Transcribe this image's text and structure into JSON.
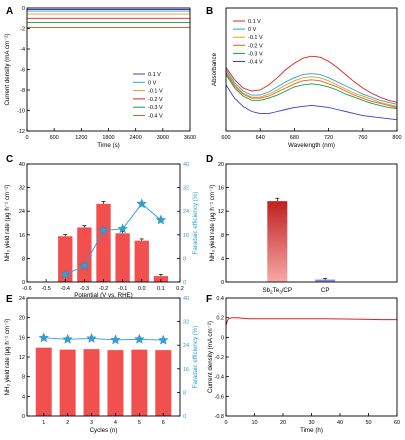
{
  "chart_data": [
    {
      "panel": "A",
      "type": "line",
      "xlabel": "Time (s)",
      "ylabel": "Current density (mA cm⁻²)",
      "xlim": [
        0,
        3600
      ],
      "ylim": [
        -12,
        0
      ],
      "xticks": [
        0,
        600,
        1200,
        1800,
        2400,
        3000,
        3600
      ],
      "yticks": [
        -12,
        -10,
        -8,
        -6,
        -4,
        -2,
        0
      ],
      "legend_position": "center-right",
      "series": [
        {
          "name": "0.1 V",
          "color": "#3a3fc4",
          "values": [
            -0.15,
            -0.15
          ]
        },
        {
          "name": "0 V",
          "color": "#2f9fd8",
          "values": [
            -0.3,
            -0.3
          ]
        },
        {
          "name": "-0.1 V",
          "color": "#e0a020",
          "values": [
            -0.6,
            -0.6
          ]
        },
        {
          "name": "-0.2 V",
          "color": "#e02020",
          "values": [
            -1.0,
            -1.0
          ]
        },
        {
          "name": "-0.3 V",
          "color": "#1a9a3a",
          "values": [
            -1.4,
            -1.4
          ]
        },
        {
          "name": "-0.4 V",
          "color": "#e06020",
          "values": [
            -1.9,
            -1.9
          ]
        }
      ],
      "x": [
        0,
        3600
      ]
    },
    {
      "panel": "B",
      "type": "line",
      "xlabel": "Wavelength (nm)",
      "ylabel": "Absorbance",
      "xlim": [
        600,
        800
      ],
      "ylim": [
        0,
        1.2
      ],
      "xticks": [
        600,
        640,
        680,
        720,
        760,
        800
      ],
      "legend_position": "top-left",
      "x": [
        600,
        610,
        620,
        630,
        640,
        650,
        660,
        670,
        680,
        690,
        700,
        710,
        720,
        730,
        740,
        750,
        760,
        770,
        780,
        790,
        800
      ],
      "series": [
        {
          "name": "0.1 V",
          "color": "#e02020",
          "values": [
            0.62,
            0.5,
            0.42,
            0.39,
            0.4,
            0.45,
            0.52,
            0.6,
            0.66,
            0.71,
            0.73,
            0.72,
            0.68,
            0.62,
            0.55,
            0.48,
            0.42,
            0.37,
            0.33,
            0.3,
            0.28
          ]
        },
        {
          "name": "0 V",
          "color": "#2f9fd8",
          "values": [
            0.6,
            0.47,
            0.39,
            0.35,
            0.35,
            0.38,
            0.43,
            0.48,
            0.52,
            0.55,
            0.56,
            0.55,
            0.52,
            0.48,
            0.44,
            0.4,
            0.36,
            0.33,
            0.3,
            0.28,
            0.26
          ]
        },
        {
          "name": "-0.1 V",
          "color": "#e0a020",
          "values": [
            0.58,
            0.45,
            0.37,
            0.33,
            0.33,
            0.36,
            0.4,
            0.45,
            0.49,
            0.52,
            0.53,
            0.52,
            0.49,
            0.45,
            0.41,
            0.37,
            0.34,
            0.31,
            0.28,
            0.26,
            0.24
          ]
        },
        {
          "name": "-0.2 V",
          "color": "#e06020",
          "values": [
            0.57,
            0.44,
            0.36,
            0.32,
            0.32,
            0.34,
            0.38,
            0.42,
            0.46,
            0.49,
            0.5,
            0.49,
            0.46,
            0.43,
            0.39,
            0.35,
            0.32,
            0.29,
            0.27,
            0.25,
            0.23
          ]
        },
        {
          "name": "-0.3 V",
          "color": "#1a9a3a",
          "values": [
            0.55,
            0.42,
            0.34,
            0.3,
            0.3,
            0.32,
            0.35,
            0.39,
            0.43,
            0.45,
            0.46,
            0.45,
            0.43,
            0.4,
            0.36,
            0.33,
            0.3,
            0.27,
            0.25,
            0.23,
            0.22
          ]
        },
        {
          "name": "-0.4 V",
          "color": "#3a3fc4",
          "values": [
            0.45,
            0.32,
            0.24,
            0.19,
            0.17,
            0.17,
            0.19,
            0.21,
            0.23,
            0.24,
            0.25,
            0.24,
            0.23,
            0.21,
            0.19,
            0.17,
            0.15,
            0.14,
            0.13,
            0.12,
            0.11
          ]
        }
      ]
    },
    {
      "panel": "C",
      "type": "bar",
      "xlabel": "Potential (V vs. RHE)",
      "ylabel": "NH₃ yield rate (μg h⁻¹ cm⁻²)",
      "y2label": "Faradaic efficiency (%)",
      "xlim": [
        -0.6,
        0.2
      ],
      "ylim": [
        0,
        40
      ],
      "y2lim": [
        0,
        40
      ],
      "xticks": [
        "-0.6",
        "-0.5",
        "-0.4",
        "-0.3",
        "-0.2",
        "-0.1",
        "0.0",
        "0.1",
        "0.2"
      ],
      "yticks": [
        0,
        8,
        16,
        24,
        32,
        40
      ],
      "y2ticks": [
        0,
        8,
        16,
        24,
        32,
        40
      ],
      "x": [
        -0.4,
        -0.3,
        -0.2,
        -0.1,
        0.0,
        0.1
      ],
      "bar_values": [
        15.5,
        18.5,
        26.5,
        16.5,
        14.0,
        2.0
      ],
      "bar_errors": [
        0.6,
        0.6,
        0.8,
        0.6,
        0.6,
        0.6
      ],
      "fe_values": [
        2.5,
        5.5,
        17.5,
        18.0,
        26.5,
        21.0
      ],
      "bar_color": "#f2504f",
      "line_color": "#2f9fd8"
    },
    {
      "panel": "D",
      "type": "bar",
      "ylabel": "NH₃ yield rate (μg h⁻¹ cm⁻²)",
      "categories": [
        "Sb₂Te₃/CP",
        "CP"
      ],
      "category_main": [
        "Sb",
        "Te",
        "/CP",
        "CP"
      ],
      "values": [
        13.7,
        0.4
      ],
      "errors": [
        0.5,
        0.2
      ],
      "ylim": [
        0,
        20
      ],
      "yticks": [
        0,
        4,
        8,
        12,
        16,
        20
      ],
      "colors": [
        "#c0201f",
        "#6a6fd4"
      ]
    },
    {
      "panel": "E",
      "type": "bar",
      "xlabel": "Cycles (n)",
      "ylabel": "NH₃ yield rate (μg h⁻¹ cm⁻²)",
      "y2label": "Faradaic efficiency (%)",
      "categories": [
        "1",
        "2",
        "3",
        "4",
        "5",
        "6"
      ],
      "values": [
        13.9,
        13.5,
        13.6,
        13.4,
        13.5,
        13.4
      ],
      "fe_values": [
        26.5,
        26.0,
        26.3,
        25.8,
        26.0,
        25.7
      ],
      "ylim": [
        0,
        24
      ],
      "yticks": [
        0,
        4,
        8,
        12,
        16,
        20,
        24
      ],
      "y2lim": [
        0,
        40
      ],
      "y2ticks": [
        0,
        8,
        16,
        24,
        32,
        40
      ],
      "bar_color": "#f2504f",
      "line_color": "#2f9fd8"
    },
    {
      "panel": "F",
      "type": "line",
      "xlabel": "Time (h)",
      "ylabel": "Current density (mA cm⁻²)",
      "xlim": [
        0,
        60
      ],
      "ylim": [
        -0.8,
        0.4
      ],
      "xticks": [
        0,
        10,
        20,
        30,
        40,
        50,
        60
      ],
      "yticks": [
        -0.8,
        -0.6,
        -0.4,
        -0.2,
        0.0,
        0.2,
        0.4
      ],
      "x": [
        0,
        0.5,
        1,
        2,
        4,
        8,
        15,
        25,
        35,
        45,
        55,
        60
      ],
      "values": [
        0.12,
        0.17,
        0.19,
        0.2,
        0.2,
        0.19,
        0.19,
        0.19,
        0.19,
        0.185,
        0.18,
        0.18
      ],
      "color": "#e02020"
    }
  ],
  "panel_labels": [
    "A",
    "B",
    "C",
    "D",
    "E",
    "F"
  ]
}
